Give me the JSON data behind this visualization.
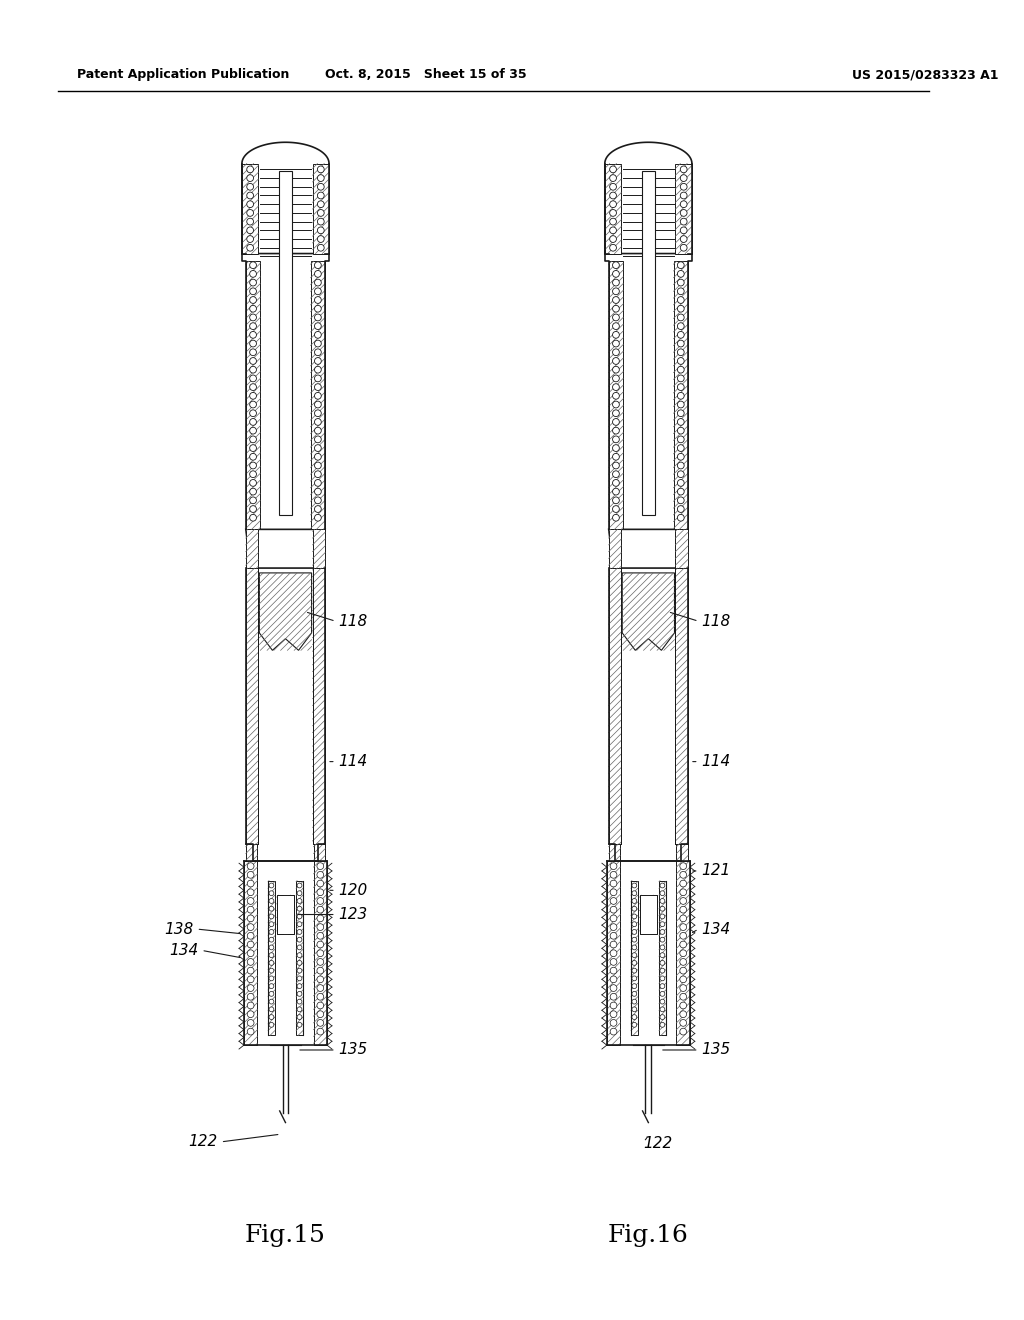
{
  "background_color": "#ffffff",
  "header_left": "Patent Application Publication",
  "header_center": "Oct. 8, 2015   Sheet 15 of 35",
  "header_right": "US 2015/0283323 A1",
  "fig15_label": "Fig.15",
  "fig16_label": "Fig.16",
  "label_118_left": "118",
  "label_114_left": "114",
  "label_120": "120",
  "label_138": "138",
  "label_134_left": "134",
  "label_123": "123",
  "label_135_left": "135",
  "label_122_left": "122",
  "label_118_right": "118",
  "label_114_right": "114",
  "label_121": "121",
  "label_134_right": "134",
  "label_135_right": "135",
  "label_122_right": "122"
}
